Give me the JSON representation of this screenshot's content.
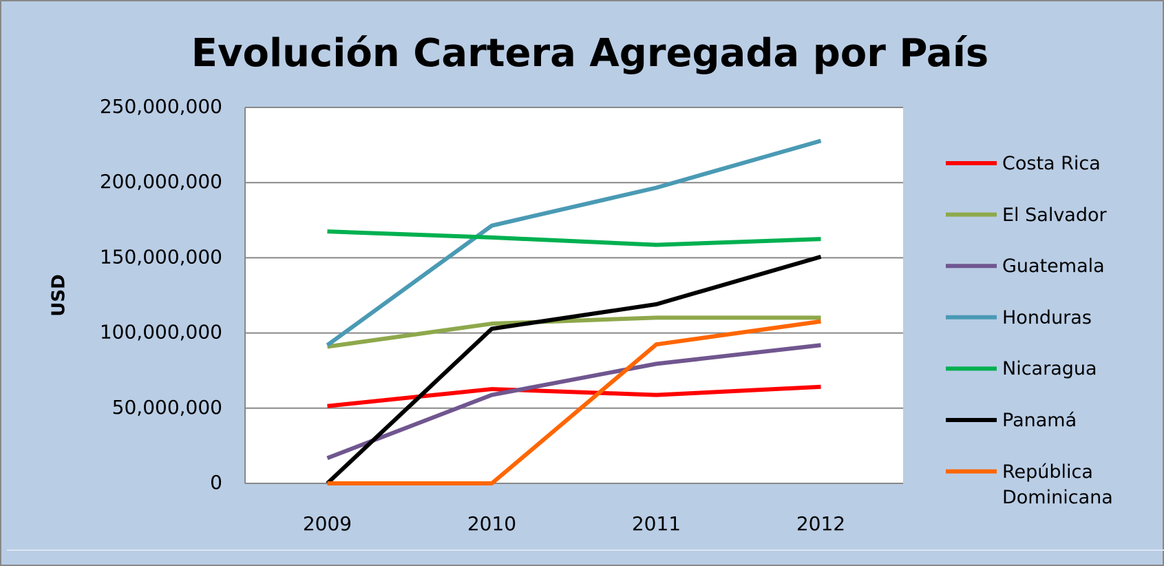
{
  "chart_data": {
    "type": "line",
    "title": "Evolución Cartera Agregada por País",
    "y_label": "USD",
    "categories": [
      "2009",
      "2010",
      "2011",
      "2012"
    ],
    "series": [
      {
        "name": "Costa Rica",
        "color": "#ff0000",
        "values": [
          51400000,
          62700000,
          58800000,
          64200000
        ]
      },
      {
        "name": "El Salvador",
        "color": "#8ea84b",
        "values": [
          90900000,
          106200000,
          110200000,
          110200000
        ]
      },
      {
        "name": "Guatemala",
        "color": "#70568f",
        "values": [
          16800000,
          58800000,
          79500000,
          91900000
        ]
      },
      {
        "name": "Honduras",
        "color": "#4a9ab4",
        "values": [
          91900000,
          171400000,
          196600000,
          227800000
        ]
      },
      {
        "name": "Nicaragua",
        "color": "#00b050",
        "values": [
          167500000,
          163500000,
          158600000,
          162500000
        ]
      },
      {
        "name": "Panamá",
        "color": "#000000",
        "values": [
          0,
          102800000,
          119100000,
          150700000
        ]
      },
      {
        "name": "República Dominicana",
        "color": "#ff6600",
        "values": [
          0,
          0,
          92400000,
          107700000
        ]
      }
    ],
    "ylim": [
      0,
      250000000
    ],
    "yticks": [
      0,
      {
        "value": 50000000,
        "label": "50,000,000"
      },
      {
        "value": 100000000,
        "label": "100,000,000"
      },
      {
        "value": 150000000,
        "label": "150,000,000"
      },
      {
        "value": 200000000,
        "label": "200,000,000"
      },
      {
        "value": 250000000,
        "label": "250,000,000"
      }
    ],
    "grid": true,
    "legend": "right"
  }
}
